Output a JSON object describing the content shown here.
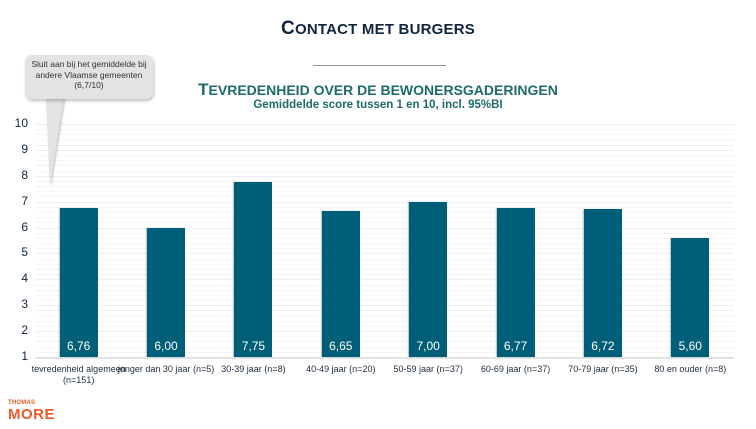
{
  "page": {
    "title_initial": "C",
    "title_rest": "ONTACT MET BURGERS"
  },
  "callout": {
    "text": "Sluit aan bij het gemiddelde bij andere Vlaamse gemeenten (6,7/10)"
  },
  "logo": {
    "line1": "THOMAS",
    "line2": "MORE"
  },
  "chart_data": {
    "type": "bar",
    "title": "Tevredenheid over de bewonersgaderingen",
    "title_initial": "T",
    "title_rest": "EVREDENHEID OVER DE BEWONERSGADERINGEN",
    "subtitle": "Gemiddelde score tussen 1 en 10, incl. 95%BI",
    "xlabel": "",
    "ylabel": "",
    "ylim": [
      1,
      10
    ],
    "yticks": [
      "10",
      "9",
      "8",
      "7",
      "6",
      "5",
      "4",
      "3",
      "2",
      "1"
    ],
    "grid": true,
    "legend": "none",
    "bar_color": "#005f78",
    "categories": [
      "tevredenheid algemeen (n=151)",
      "jonger dan 30 jaar (n=5)",
      "30-39 jaar (n=8)",
      "40-49 jaar (n=20)",
      "50-59 jaar (n=37)",
      "60-69 jaar (n=37)",
      "70-79 jaar (n=35)",
      "80 en ouder (n=8)"
    ],
    "values": [
      6.76,
      6.0,
      7.75,
      6.65,
      7.0,
      6.77,
      6.72,
      5.6
    ],
    "value_labels": [
      "6,76",
      "6,00",
      "7,75",
      "6,65",
      "7,00",
      "6,77",
      "6,72",
      "5,60"
    ],
    "annotations": [
      "Sluit aan bij het gemiddelde bij andere Vlaamse gemeenten (6,7/10)"
    ]
  }
}
